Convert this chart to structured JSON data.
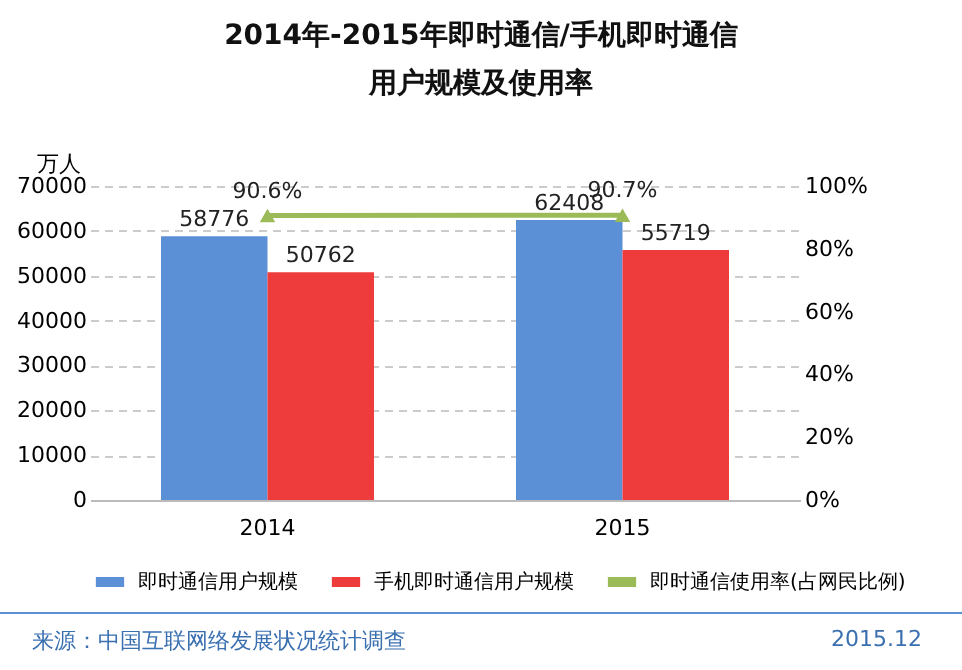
{
  "chart_data": {
    "type": "bar",
    "title": "2014年-2015年即时通信/手机即时通信用户规模及使用率",
    "ylabel": "万人",
    "categories": [
      "2014",
      "2015"
    ],
    "series": [
      {
        "name": "即时通信用户规模",
        "color": "#5b8fd6",
        "values": [
          58776,
          62408
        ],
        "value_labels": [
          "58776",
          "62408"
        ]
      },
      {
        "name": "手机即时通信用户规模",
        "color": "#ee3b3b",
        "values": [
          50762,
          55719
        ],
        "value_labels": [
          "50762",
          "55719"
        ]
      },
      {
        "name": "即时通信使用率(占网民比例)",
        "type": "line",
        "axis": "y2",
        "color": "#9bbb59",
        "marker": "triangle",
        "values": [
          90.6,
          90.7
        ],
        "value_labels": [
          "90.6%",
          "90.7%"
        ]
      }
    ],
    "ylim": [
      0,
      70000
    ],
    "yticks": [
      0,
      10000,
      20000,
      30000,
      40000,
      50000,
      60000,
      70000
    ],
    "y2lim": [
      0,
      100
    ],
    "y2ticks": [
      {
        "value": 0,
        "label": "0%"
      },
      {
        "value": 20,
        "label": "20%"
      },
      {
        "value": 40,
        "label": "40%"
      },
      {
        "value": 60,
        "label": "60%"
      },
      {
        "value": 80,
        "label": "80%"
      },
      {
        "value": 100,
        "label": "100%"
      }
    ],
    "grid": "y",
    "legend": "bottom",
    "annotations": [
      "来源：中国互联网络发展状况统计调查",
      "2015.12"
    ]
  }
}
